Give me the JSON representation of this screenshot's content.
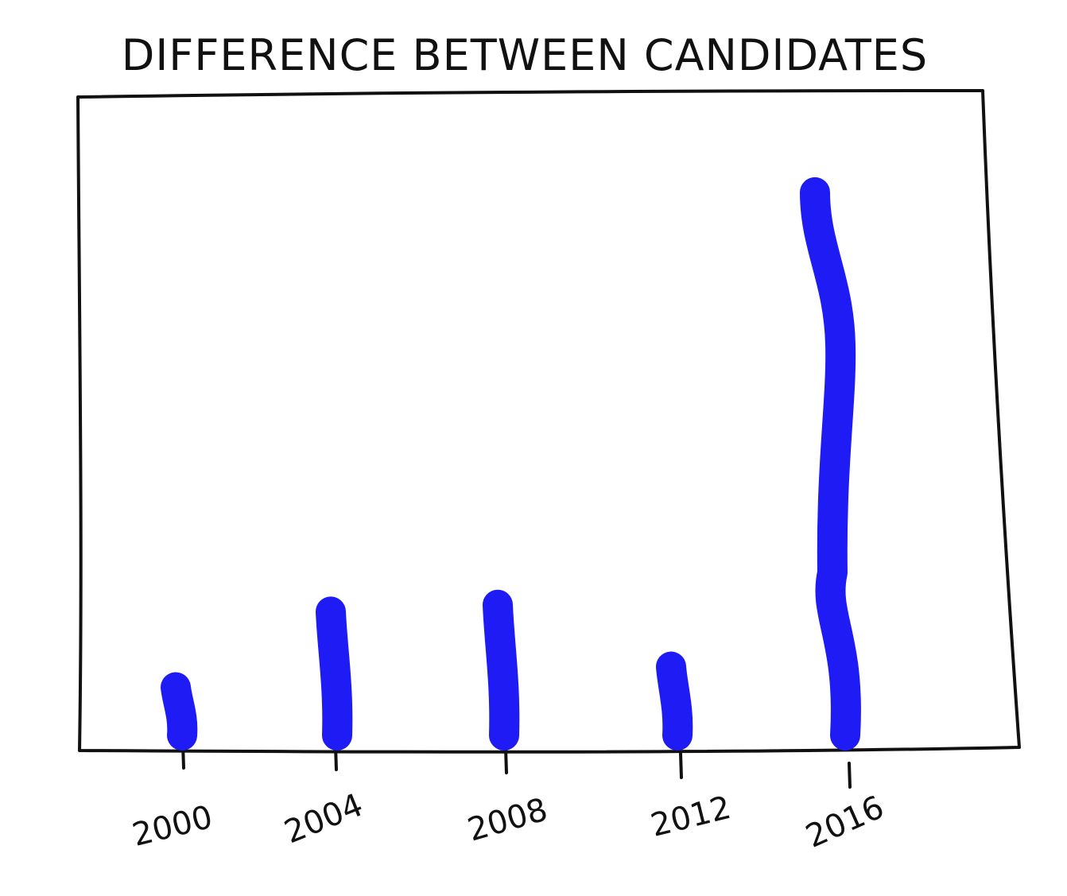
{
  "chart_data": {
    "type": "bar",
    "title": "DIFFERENCE BETWEEN CANDIDATES",
    "xlabel": "",
    "ylabel": "",
    "categories": [
      "2000",
      "2004",
      "2008",
      "2012",
      "2016"
    ],
    "values": [
      7,
      18,
      19,
      10,
      79
    ],
    "ylim": [
      0,
      85
    ],
    "grid": false,
    "bar_color": "#1f1bf5",
    "axis_color": "#111111"
  }
}
